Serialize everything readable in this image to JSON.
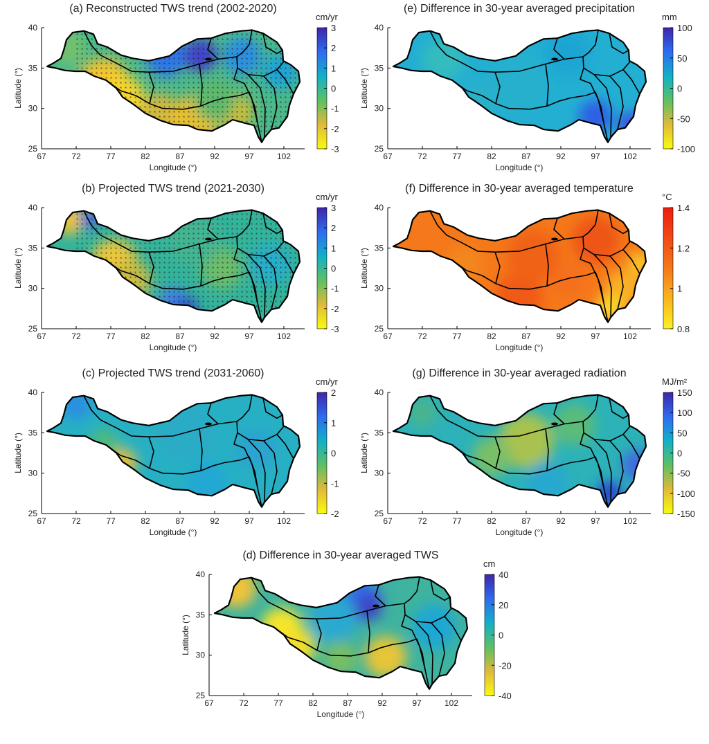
{
  "x_axis": {
    "label": "Longitude (°)",
    "ticks": [
      "67",
      "72",
      "77",
      "82",
      "87",
      "92",
      "97",
      "102"
    ]
  },
  "y_axis": {
    "label": "Latitude (°)",
    "ticks": [
      "25",
      "30",
      "35",
      "40"
    ]
  },
  "panels": [
    {
      "id": "a",
      "title": "(a) Reconstructed TWS trend (2002-2020)",
      "unit": "cm/yr",
      "colormap": "parula",
      "colorbar_ticks": [
        "3",
        "2",
        "1",
        "0",
        "-1",
        "-2",
        "-3"
      ],
      "range": [
        -3,
        3
      ],
      "stippled": true
    },
    {
      "id": "e",
      "title": "(e) Difference in 30-year averaged precipitation",
      "unit": "mm",
      "colormap": "parula",
      "colorbar_ticks": [
        "100",
        "50",
        "0",
        "-50",
        "-100"
      ],
      "range": [
        -100,
        100
      ],
      "stippled": false
    },
    {
      "id": "b",
      "title": "(b) Projected TWS trend (2021-2030)",
      "unit": "cm/yr",
      "colormap": "parula",
      "colorbar_ticks": [
        "3",
        "2",
        "1",
        "0",
        "-1",
        "-2",
        "-3"
      ],
      "range": [
        -3,
        3
      ],
      "stippled": true
    },
    {
      "id": "f",
      "title": "(f) Difference in 30-year averaged temperature",
      "unit": "°C",
      "colormap": "hot",
      "colorbar_ticks": [
        "1.4",
        "1.2",
        "1",
        "0.8"
      ],
      "range": [
        0.8,
        1.4
      ],
      "stippled": false
    },
    {
      "id": "c",
      "title": "(c) Projected TWS trend (2031-2060)",
      "unit": "cm/yr",
      "colormap": "parula",
      "colorbar_ticks": [
        "2",
        "1",
        "0",
        "-1",
        "-2"
      ],
      "range": [
        -2,
        2
      ],
      "stippled": false
    },
    {
      "id": "g",
      "title": "(g) Difference in 30-year averaged radiation",
      "unit": "MJ/m²",
      "colormap": "parula",
      "colorbar_ticks": [
        "150",
        "100",
        "50",
        "0",
        "-50",
        "-100",
        "-150"
      ],
      "range": [
        -150,
        150
      ],
      "stippled": false
    },
    {
      "id": "d",
      "title": "(d) Difference in 30-year averaged TWS",
      "unit": "cm",
      "colormap": "parula",
      "colorbar_ticks": [
        "40",
        "20",
        "0",
        "-20",
        "-40"
      ],
      "range": [
        -40,
        40
      ],
      "stippled": false
    }
  ],
  "colors": {
    "parula_high": "#3e26a8",
    "parula_mid": "#12b0c9",
    "parula_low": "#f9fb0e",
    "hot_high": "#ee1c10",
    "hot_mid": "#f5781a",
    "hot_low": "#fcf024"
  }
}
